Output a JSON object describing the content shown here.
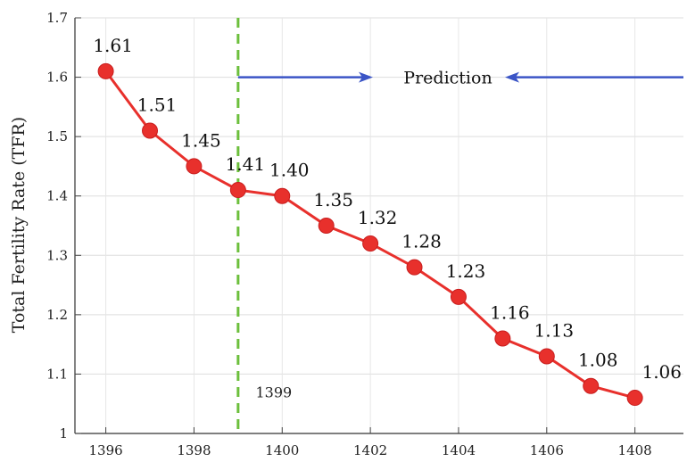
{
  "chart_data": {
    "type": "line",
    "ylabel": "Total Fertility Rate (TFR)",
    "xlabel": "",
    "xlim": [
      1395.3,
      1409.1
    ],
    "ylim": [
      1.0,
      1.7
    ],
    "x_ticks": [
      1396,
      1398,
      1400,
      1402,
      1404,
      1406,
      1408
    ],
    "y_ticks": [
      "1",
      "1.1",
      "1.2",
      "1.3",
      "1.4",
      "1.5",
      "1.6",
      "1.7"
    ],
    "grid": true,
    "series": [
      {
        "color": "#e8302c",
        "x": [
          1396,
          1397,
          1398,
          1399,
          1400,
          1401,
          1402,
          1403,
          1404,
          1405,
          1406,
          1407,
          1408
        ],
        "values": [
          1.61,
          1.51,
          1.45,
          1.41,
          1.4,
          1.35,
          1.32,
          1.28,
          1.23,
          1.16,
          1.13,
          1.08,
          1.06
        ],
        "labels": [
          "1.61",
          "1.51",
          "1.45",
          "1.41",
          "1.40",
          "1.35",
          "1.32",
          "1.28",
          "1.23",
          "1.16",
          "1.13",
          "1.08",
          "1.06"
        ]
      }
    ],
    "divider": {
      "x": 1399,
      "label": "1399",
      "color": "#6cbf3c"
    },
    "annotation": {
      "text": "Prediction",
      "y": 1.6,
      "arrow_color": "#3b55c6"
    }
  }
}
